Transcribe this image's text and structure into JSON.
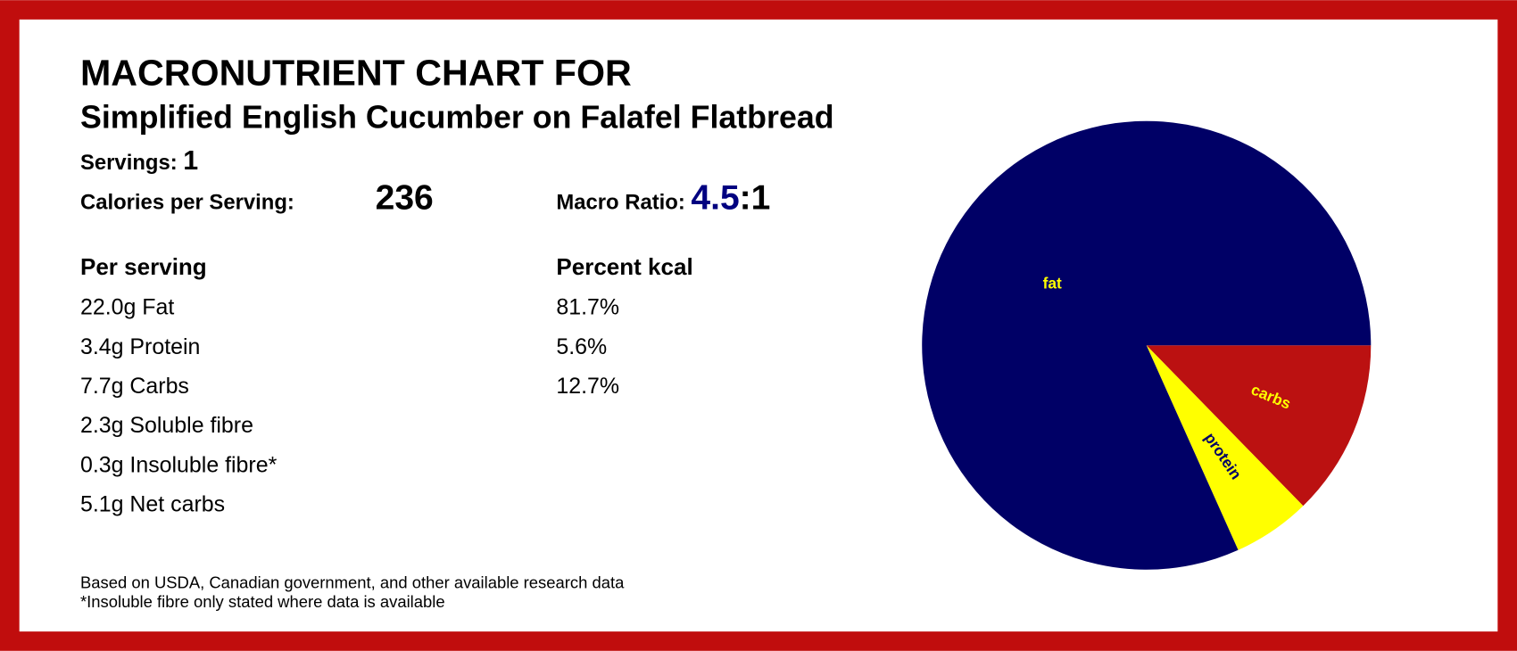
{
  "header": {
    "title": "MACRONUTRIENT CHART FOR",
    "subtitle": "Simplified English Cucumber on Falafel Flatbread"
  },
  "servings": {
    "label": "Servings:",
    "value": "1"
  },
  "calories": {
    "label": "Calories per Serving:",
    "value": "236"
  },
  "macro_ratio": {
    "label": "Macro Ratio:",
    "value": "4.5",
    "suffix": ":1"
  },
  "per_serving": {
    "heading": "Per serving",
    "rows": [
      "22.0g Fat",
      "3.4g Protein",
      "7.7g Carbs",
      "2.3g Soluble fibre",
      "0.3g Insoluble fibre*",
      "5.1g Net carbs"
    ]
  },
  "percent_kcal": {
    "heading": "Percent kcal",
    "rows": [
      "81.7%",
      "5.6%",
      "12.7%"
    ]
  },
  "footnotes": [
    "Based on USDA, Canadian government, and other available research data",
    "*Insoluble fibre only stated where data is available"
  ],
  "chart_data": {
    "type": "pie",
    "categories": [
      "carbs",
      "protein",
      "fat"
    ],
    "values": [
      12.7,
      5.6,
      81.7
    ],
    "colors": [
      "#bb1111",
      "#ffff00",
      "#000066"
    ],
    "label_colors": [
      "#ffff00",
      "#000066",
      "#ffff00"
    ]
  }
}
